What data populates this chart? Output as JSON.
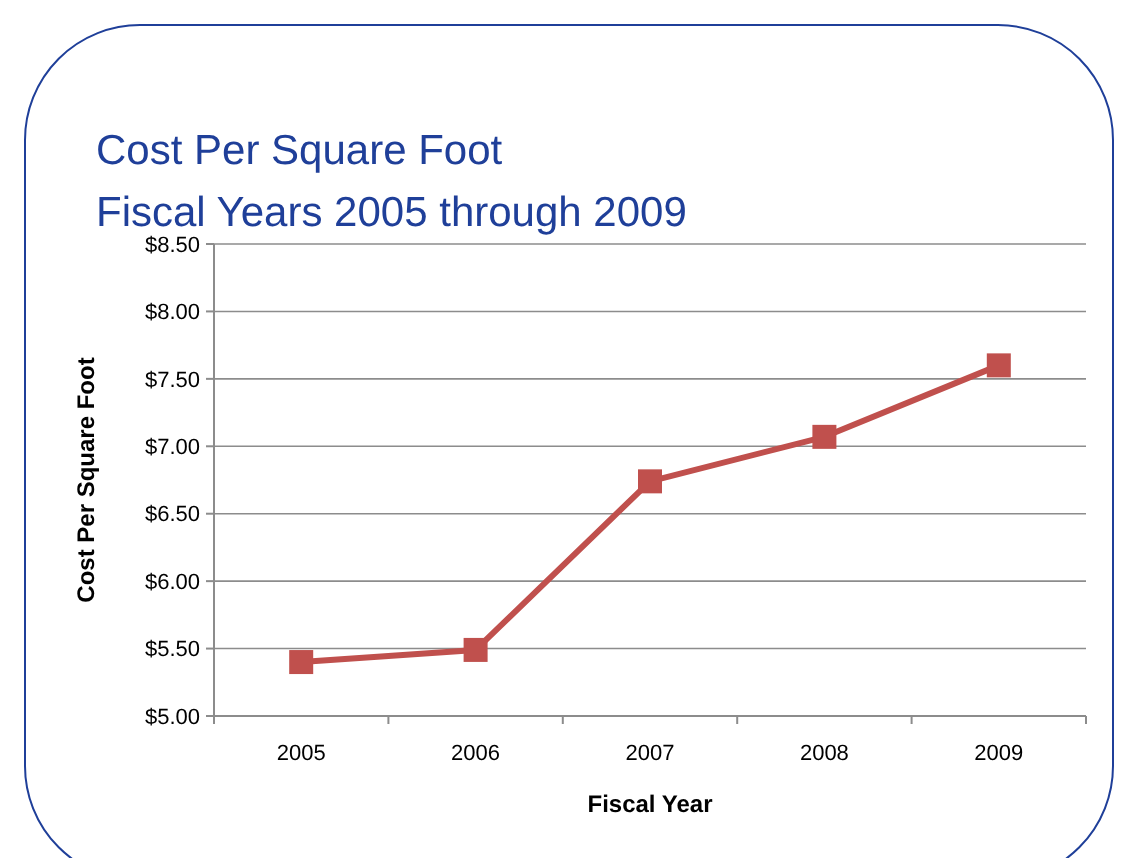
{
  "chart_data": {
    "type": "line",
    "title": "Cost Per Square Foot\nFiscal Years 2005 through 2009",
    "xlabel": "Fiscal Year",
    "ylabel": "Cost Per Square Foot",
    "categories": [
      "2005",
      "2006",
      "2007",
      "2008",
      "2009"
    ],
    "series": [
      {
        "color": "#c0504d",
        "values": [
          5.4,
          5.49,
          6.74,
          7.07,
          7.6
        ]
      }
    ],
    "ylim": [
      5,
      8.5
    ],
    "yticks": [
      {
        "value": 5,
        "label": "$5.00"
      },
      {
        "value": 5.5,
        "label": "$5.50"
      },
      {
        "value": 6,
        "label": "$6.00"
      },
      {
        "value": 6.5,
        "label": "$6.50"
      },
      {
        "value": 7,
        "label": "$7.00"
      },
      {
        "value": 7.5,
        "label": "$7.50"
      },
      {
        "value": 8,
        "label": "$8.00"
      },
      {
        "value": 8.5,
        "label": "$8.50"
      }
    ],
    "grid": "y",
    "marker": "square",
    "line_style": "solid"
  }
}
